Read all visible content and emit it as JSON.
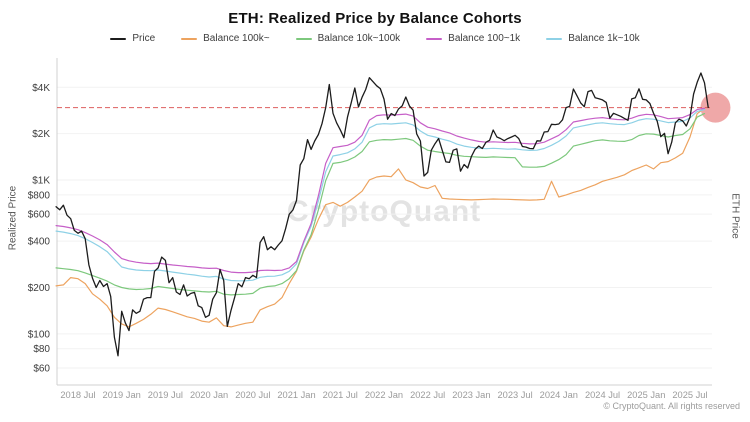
{
  "header": {
    "title": "ETH: Realized Price by Balance Cohorts"
  },
  "axes": {
    "y_left_label": "Realized Price",
    "y_right_label": "ETH Price",
    "y_ticks": [
      {
        "label": "$4K",
        "value": 4000
      },
      {
        "label": "$2K",
        "value": 2000
      },
      {
        "label": "$1K",
        "value": 1000
      },
      {
        "label": "$800",
        "value": 800
      },
      {
        "label": "$600",
        "value": 600
      },
      {
        "label": "$400",
        "value": 400
      },
      {
        "label": "$200",
        "value": 200
      },
      {
        "label": "$100",
        "value": 100
      },
      {
        "label": "$80",
        "value": 80
      },
      {
        "label": "$60",
        "value": 60
      }
    ],
    "x_ticks": [
      {
        "label": "2018 Jul",
        "month_index": 3
      },
      {
        "label": "2019 Jan",
        "month_index": 9
      },
      {
        "label": "2019 Jul",
        "month_index": 15
      },
      {
        "label": "2020 Jan",
        "month_index": 21
      },
      {
        "label": "2020 Jul",
        "month_index": 27
      },
      {
        "label": "2021 Jan",
        "month_index": 33
      },
      {
        "label": "2021 Jul",
        "month_index": 39
      },
      {
        "label": "2022 Jan",
        "month_index": 45
      },
      {
        "label": "2022 Jul",
        "month_index": 51
      },
      {
        "label": "2023 Jan",
        "month_index": 57
      },
      {
        "label": "2023 Jul",
        "month_index": 63
      },
      {
        "label": "2024 Jan",
        "month_index": 69
      },
      {
        "label": "2024 Jul",
        "month_index": 75
      },
      {
        "label": "2025 Jan",
        "month_index": 81
      },
      {
        "label": "2025 Jul",
        "month_index": 87
      }
    ]
  },
  "watermark": {
    "text": "CryptoQuant"
  },
  "footer": {
    "copyright": "© CryptoQuant. All rights reserved"
  },
  "chart_data": {
    "type": "line",
    "title": "ETH: Realized Price by Balance Cohorts",
    "ylabel": "Realized Price",
    "ylabel_right": "ETH Price",
    "y_scale": "log",
    "ylim": [
      46.5,
      6200
    ],
    "x_start": "2018-04",
    "x_end": "2025-09",
    "grid": "horizontal-only",
    "legend_position": "top",
    "reference_line": {
      "value": 2950,
      "color": "#dd5f5f",
      "style": "dashed"
    },
    "highlight": {
      "shape": "circle",
      "month_index": 90.5,
      "value": 2950,
      "radius_px": 15,
      "color": "#e05252",
      "opacity": 0.5
    },
    "series": [
      {
        "name": "Price",
        "color": "#1c1c1c",
        "step_months": 0.5,
        "values": [
          670,
          640,
          685,
          590,
          560,
          470,
          450,
          465,
          415,
          280,
          230,
          200,
          222,
          203,
          212,
          175,
          95,
          72,
          140,
          118,
          105,
          143,
          136,
          140,
          168,
          172,
          172,
          255,
          268,
          315,
          300,
          215,
          232,
          187,
          180,
          208,
          176,
          183,
          186,
          152,
          148,
          128,
          132,
          168,
          185,
          262,
          222,
          112,
          142,
          172,
          212,
          202,
          232,
          228,
          240,
          232,
          392,
          428,
          352,
          368,
          352,
          378,
          402,
          482,
          598,
          638,
          735,
          1250,
          1375,
          1830,
          1580,
          1790,
          1975,
          2320,
          2950,
          4170,
          2710,
          2350,
          2120,
          1880,
          2560,
          3170,
          3960,
          2980,
          3450,
          3870,
          4620,
          4350,
          4090,
          3920,
          3350,
          2480,
          2700,
          2620,
          2890,
          3030,
          3460,
          3020,
          2840,
          1990,
          1790,
          1060,
          1120,
          1560,
          1720,
          1860,
          1560,
          1310,
          1300,
          1560,
          1590,
          1140,
          1260,
          1195,
          1420,
          1580,
          1660,
          1600,
          1760,
          1810,
          2110,
          1900,
          1860,
          1800,
          1855,
          1900,
          1950,
          1860,
          1650,
          1635,
          1600,
          1595,
          1795,
          1790,
          2050,
          2060,
          2300,
          2290,
          2310,
          2460,
          2950,
          3010,
          3900,
          3520,
          3160,
          2990,
          3750,
          3820,
          3420,
          3370,
          3310,
          3190,
          2520,
          2710,
          2650,
          2590,
          2510,
          2440,
          3360,
          3420,
          3910,
          3340,
          3310,
          3140,
          2720,
          2410,
          1910,
          2010,
          1480,
          1760,
          2350,
          2480,
          2420,
          2240,
          2560,
          3620,
          4310,
          4950,
          4280,
          2960
        ]
      },
      {
        "name": "Balance 100k~",
        "color": "#eda35f",
        "step_months": 1,
        "values": [
          205,
          208,
          232,
          228,
          212,
          182,
          168,
          152,
          128,
          116,
          111,
          117,
          124,
          134,
          147,
          144,
          139,
          134,
          129,
          126,
          121,
          119,
          127,
          113,
          111,
          114,
          117,
          119,
          143,
          150,
          156,
          172,
          212,
          255,
          345,
          425,
          555,
          690,
          715,
          675,
          715,
          775,
          845,
          1000,
          1045,
          1060,
          1050,
          1180,
          1000,
          960,
          900,
          880,
          920,
          760,
          752,
          748,
          745,
          742,
          745,
          748,
          752,
          750,
          748,
          745,
          742,
          740,
          742,
          748,
          980,
          775,
          800,
          830,
          855,
          895,
          930,
          980,
          1010,
          1040,
          1080,
          1150,
          1200,
          1250,
          1180,
          1295,
          1315,
          1390,
          1490,
          1900,
          2700,
          2920
        ]
      },
      {
        "name": "Balance 10k~100k",
        "color": "#7dc87d",
        "step_months": 1,
        "values": [
          268,
          265,
          262,
          257,
          249,
          239,
          230,
          220,
          208,
          200,
          196,
          194,
          195,
          197,
          203,
          200,
          197,
          194,
          192,
          190,
          188,
          187,
          189,
          181,
          179,
          180,
          181,
          183,
          198,
          203,
          205,
          212,
          228,
          258,
          350,
          440,
          640,
          990,
          1280,
          1300,
          1340,
          1410,
          1530,
          1770,
          1810,
          1830,
          1820,
          1840,
          1860,
          1810,
          1660,
          1560,
          1530,
          1505,
          1485,
          1445,
          1425,
          1415,
          1408,
          1402,
          1412,
          1406,
          1400,
          1395,
          1215,
          1210,
          1212,
          1225,
          1285,
          1355,
          1460,
          1660,
          1705,
          1750,
          1800,
          1820,
          1795,
          1785,
          1780,
          1830,
          1945,
          1995,
          1985,
          1945,
          1900,
          1945,
          1975,
          2150,
          2560,
          2700
        ]
      },
      {
        "name": "Balance 100~1k",
        "color": "#c65fc8",
        "step_months": 1,
        "values": [
          505,
          498,
          488,
          475,
          455,
          432,
          408,
          380,
          340,
          308,
          298,
          292,
          288,
          286,
          288,
          284,
          280,
          277,
          274,
          272,
          268,
          266,
          267,
          258,
          252,
          250,
          250,
          252,
          258,
          259,
          258,
          259,
          268,
          295,
          400,
          520,
          790,
          1280,
          1620,
          1650,
          1680,
          1760,
          1950,
          2450,
          2620,
          2650,
          2640,
          2660,
          2680,
          2600,
          2350,
          2200,
          2150,
          2080,
          2020,
          1930,
          1870,
          1820,
          1780,
          1760,
          1770,
          1760,
          1750,
          1755,
          1730,
          1715,
          1720,
          1760,
          1850,
          1950,
          2120,
          2380,
          2430,
          2480,
          2520,
          2540,
          2500,
          2470,
          2460,
          2520,
          2620,
          2670,
          2650,
          2580,
          2500,
          2520,
          2540,
          2660,
          2870,
          2920
        ]
      },
      {
        "name": "Balance 1k~10k",
        "color": "#8ed1e6",
        "step_months": 1,
        "values": [
          465,
          458,
          448,
          435,
          415,
          392,
          368,
          342,
          305,
          272,
          264,
          260,
          258,
          257,
          260,
          256,
          252,
          248,
          244,
          241,
          237,
          234,
          236,
          227,
          222,
          221,
          221,
          223,
          233,
          236,
          237,
          242,
          255,
          285,
          390,
          500,
          730,
          1130,
          1430,
          1460,
          1500,
          1590,
          1760,
          2180,
          2300,
          2320,
          2310,
          2330,
          2350,
          2280,
          2080,
          1950,
          1900,
          1840,
          1790,
          1710,
          1660,
          1630,
          1610,
          1595,
          1605,
          1595,
          1585,
          1590,
          1570,
          1555,
          1560,
          1600,
          1680,
          1780,
          1930,
          2180,
          2230,
          2280,
          2330,
          2350,
          2320,
          2300,
          2290,
          2350,
          2450,
          2500,
          2480,
          2420,
          2360,
          2380,
          2400,
          2530,
          2790,
          2870
        ]
      }
    ]
  }
}
